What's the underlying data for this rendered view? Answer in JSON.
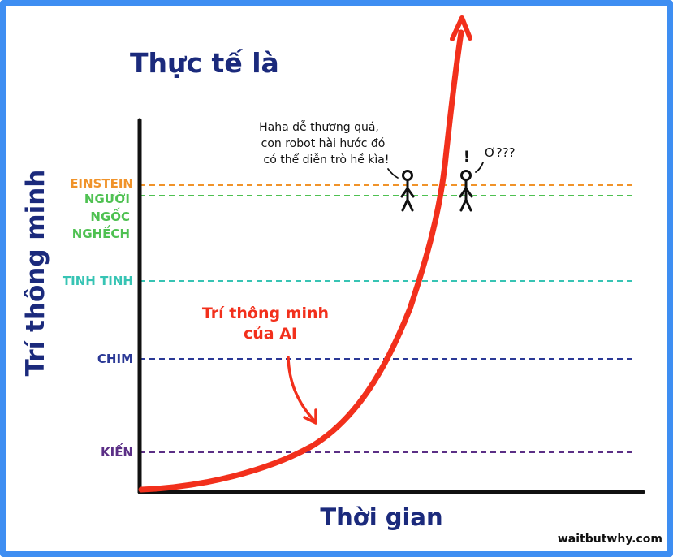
{
  "title": "Thực tế là",
  "y_axis_label": "Trí thông minh",
  "x_axis_label": "Thời gian",
  "credit": "waitbutwhy.com",
  "curve_label": [
    "Trí thông minh",
    "của AI"
  ],
  "speech_left": [
    "Haha dễ thương quá,",
    "con robot hài hước đó",
    "có thể diễn trò hề kìa!"
  ],
  "speech_right_exclaim": "!",
  "speech_right": "Ơ???",
  "levels": [
    {
      "id": "einstein",
      "lines": [
        "EINSTEIN"
      ],
      "color": "#f0932a"
    },
    {
      "id": "dumb-human",
      "lines": [
        "NGƯỜI",
        "NGỐC",
        "NGHẾCH"
      ],
      "color": "#4fc152"
    },
    {
      "id": "chimp",
      "lines": [
        "TINH TINH"
      ],
      "color": "#37c4b4"
    },
    {
      "id": "bird",
      "lines": [
        "CHIM"
      ],
      "color": "#2b3996"
    },
    {
      "id": "ant",
      "lines": [
        "KIẾN"
      ],
      "color": "#5b2f86"
    }
  ],
  "colors": {
    "title": "#1b2a7c",
    "axis": "#111111",
    "ai_curve": "#f2301c",
    "border": "#3e8ef2"
  }
}
